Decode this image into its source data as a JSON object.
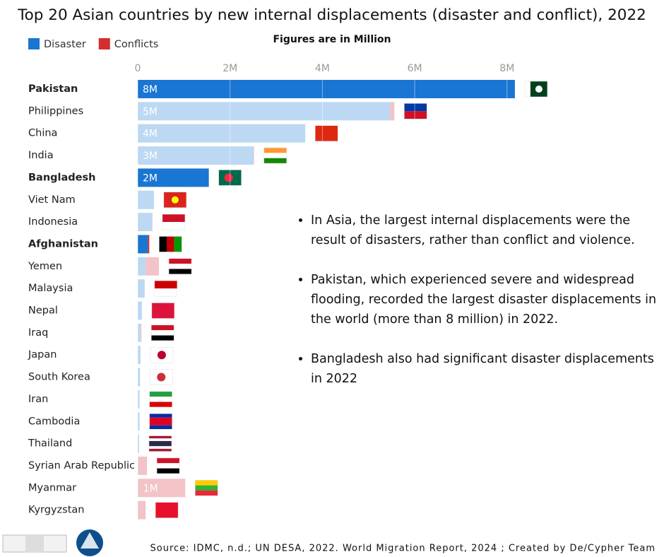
{
  "chart_data": {
    "type": "stacked-bar-horizontal",
    "title": "Top 20 Asian countries by new internal displacements (disaster and conflict), 2022",
    "subtitle": "Figures are in Million",
    "categories": [
      "Pakistan",
      "Philippines",
      "China",
      "India",
      "Bangladesh",
      "Viet Nam",
      "Indonesia",
      "Afghanistan",
      "Yemen",
      "Malaysia",
      "Nepal",
      "Iraq",
      "Japan",
      "South Korea",
      "Iran",
      "Cambodia",
      "Thailand",
      "Syrian Arab Republic",
      "Myanmar",
      "Kyrgyzstan"
    ],
    "highlighted": [
      true,
      false,
      false,
      false,
      true,
      false,
      false,
      true,
      false,
      false,
      false,
      false,
      false,
      false,
      false,
      false,
      false,
      false,
      false,
      false
    ],
    "series": [
      {
        "name": "Disaster",
        "color": "#1976d2",
        "faded_color": "#bcd8f3",
        "values": [
          8.17,
          5.47,
          3.63,
          2.51,
          1.54,
          0.35,
          0.31,
          0.22,
          0.17,
          0.15,
          0.09,
          0.06,
          0.06,
          0.05,
          0.04,
          0.04,
          0.03,
          0.01,
          0.01,
          0
        ],
        "value_labels": [
          "8M",
          "5M",
          "4M",
          "3M",
          "2M",
          null,
          null,
          null,
          null,
          null,
          null,
          null,
          null,
          null,
          null,
          null,
          null,
          null,
          null,
          null
        ]
      },
      {
        "name": "Conflicts",
        "color": "#d32f2f",
        "faded_color": "#f2c3c7",
        "values": [
          0,
          0.09,
          0,
          0.01,
          0,
          0,
          0.01,
          0.03,
          0.29,
          0,
          0,
          0.02,
          0,
          0,
          0,
          0,
          0,
          0.19,
          1.02,
          0.17
        ],
        "value_labels": [
          null,
          null,
          null,
          null,
          null,
          null,
          null,
          null,
          null,
          null,
          null,
          null,
          null,
          null,
          null,
          null,
          null,
          null,
          "1M",
          null
        ]
      }
    ],
    "xlim": [
      0,
      8.6
    ],
    "xticks": [
      0,
      {
        "value": 2,
        "label": "2M"
      },
      {
        "value": 4,
        "label": "4M"
      },
      {
        "value": 6,
        "label": "6M"
      },
      {
        "value": 8,
        "label": "8M"
      }
    ],
    "grid": true,
    "legend": "top-left",
    "notes": [
      "In Asia, the largest internal displacements were the result of disasters, rather than conflict and violence.",
      " Pakistan, which experienced severe and widespread flooding, recorded the largest disaster displacements in the world (more than 8 million) in 2022.",
      " Bangladesh also had significant disaster displacements in 2022"
    ],
    "source": "Source: IDMC, n.d.; UN DESA, 2022. World Migration Report, 2024 ; Created by De/Cypher Team"
  }
}
